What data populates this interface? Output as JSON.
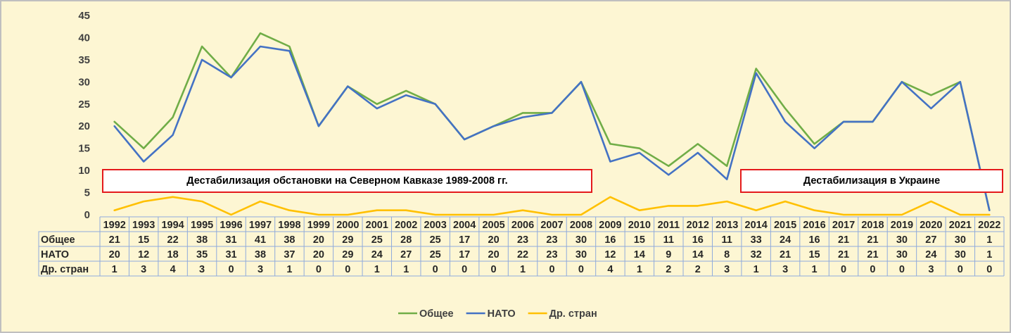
{
  "chart_data": {
    "type": "line",
    "categories": [
      "1992",
      "1993",
      "1994",
      "1995",
      "1996",
      "1997",
      "1998",
      "1999",
      "2000",
      "2001",
      "2002",
      "2003",
      "2004",
      "2005",
      "2006",
      "2007",
      "2008",
      "2009",
      "2010",
      "2011",
      "2012",
      "2013",
      "2014",
      "2015",
      "2016",
      "2017",
      "2018",
      "2019",
      "2020",
      "2021",
      "2022"
    ],
    "series": [
      {
        "name": "Общее",
        "color": "#70ad47",
        "values": [
          21,
          15,
          22,
          38,
          31,
          41,
          38,
          20,
          29,
          25,
          28,
          25,
          17,
          20,
          23,
          23,
          30,
          16,
          15,
          11,
          16,
          11,
          33,
          24,
          16,
          21,
          21,
          30,
          27,
          30,
          1
        ]
      },
      {
        "name": "НАТО",
        "color": "#4472c4",
        "values": [
          20,
          12,
          18,
          35,
          31,
          38,
          37,
          20,
          29,
          24,
          27,
          25,
          17,
          20,
          22,
          23,
          30,
          12,
          14,
          9,
          14,
          8,
          32,
          21,
          15,
          21,
          21,
          30,
          24,
          30,
          1
        ]
      },
      {
        "name": "Др. стран",
        "color": "#ffc000",
        "values": [
          1,
          3,
          4,
          3,
          0,
          3,
          1,
          0,
          0,
          1,
          1,
          0,
          0,
          0,
          1,
          0,
          0,
          4,
          1,
          2,
          2,
          3,
          1,
          3,
          1,
          0,
          0,
          0,
          3,
          0,
          0
        ]
      }
    ],
    "ylim": [
      0,
      45
    ],
    "yticks": [
      0,
      5,
      10,
      15,
      20,
      25,
      30,
      35,
      40,
      45
    ],
    "grid": false,
    "legend_position": "bottom",
    "annotations": [
      {
        "text": "Дестабилизация обстановки на Северном Кавказе 1989-2008 гг.",
        "from": "1992",
        "to": "2008"
      },
      {
        "text": "Дестабилизация в Украине",
        "from": "2014",
        "to": "2022"
      }
    ]
  }
}
